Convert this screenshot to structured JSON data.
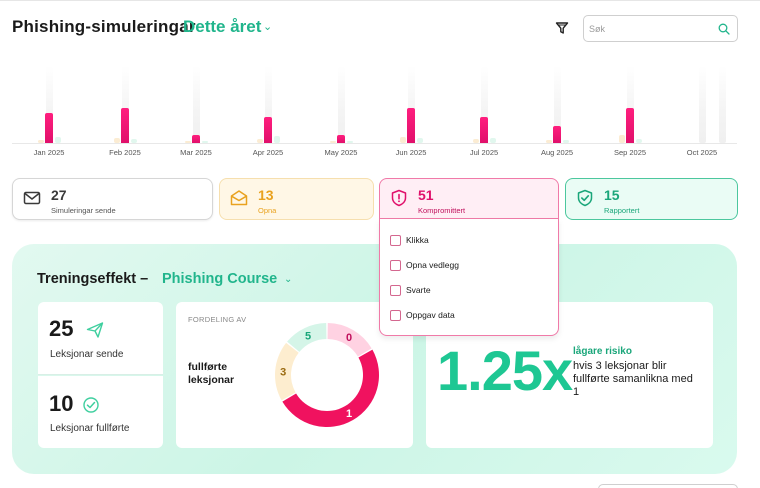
{
  "header": {
    "title": "Phishing-simuleringar",
    "period": "Dette året",
    "search_placeholder": "Søk"
  },
  "chart_data": {
    "type": "bar",
    "categories": [
      "Jan 2025",
      "Feb 2025",
      "Mar 2025",
      "Apr 2025",
      "May 2025",
      "Jun 2025",
      "Jul 2025",
      "Aug 2025",
      "Sep 2025",
      "Oct 2025"
    ],
    "series": [
      {
        "name": "Kompromittert",
        "values": [
          30,
          35,
          8,
          26,
          8,
          35,
          26,
          17,
          35,
          0
        ]
      },
      {
        "name": "Opna",
        "values": [
          3,
          5,
          2,
          4,
          2,
          6,
          4,
          3,
          8,
          0
        ]
      },
      {
        "name": "Rapportert",
        "values": [
          6,
          4,
          2,
          7,
          2,
          5,
          5,
          3,
          4,
          0
        ]
      }
    ],
    "ylim": [
      0,
      77
    ],
    "colors": {
      "Kompromittert": "#e0106b",
      "Opna": "#f8dcae",
      "Rapportert": "#c8f0e0"
    }
  },
  "cards": [
    {
      "value": "27",
      "label": "Simuleringar sende",
      "icon": "envelope-icon"
    },
    {
      "value": "13",
      "label": "Opna",
      "icon": "open-envelope-icon"
    },
    {
      "value": "51",
      "label": "Kompromittert",
      "icon": "shield-alert-icon"
    },
    {
      "value": "15",
      "label": "Rapportert",
      "icon": "shield-check-icon"
    }
  ],
  "dropdown": {
    "options": [
      "Klikka",
      "Opna vedlegg",
      "Svarte",
      "Oppgav data"
    ]
  },
  "training": {
    "title": "Treningseffekt –",
    "course": "Phishing Course",
    "sent": {
      "value": "25",
      "label": "Leksjonar sende"
    },
    "completed": {
      "value": "10",
      "label": "Leksjonar fullførte"
    },
    "distribution": {
      "heading": "FORDELING AV",
      "main": "fullførte leksjonar",
      "segments": [
        {
          "label": "0",
          "value": 2,
          "color": "#ffd2e2",
          "text_color": "#c0105c"
        },
        {
          "label": "1",
          "value": 6,
          "color": "#f0125f",
          "text_color": "#ffffff"
        },
        {
          "label": "3",
          "value": 2.3,
          "color": "#fdedcf",
          "text_color": "#9a6b12"
        },
        {
          "label": "5",
          "value": 1.7,
          "color": "#d5f5e8",
          "text_color": "#1aa67a"
        }
      ]
    },
    "risk": {
      "big": "1.25x",
      "heading": "lågare risiko",
      "text": "hvis 3 leksjonar blir fullførte samanlikna med 1"
    }
  }
}
